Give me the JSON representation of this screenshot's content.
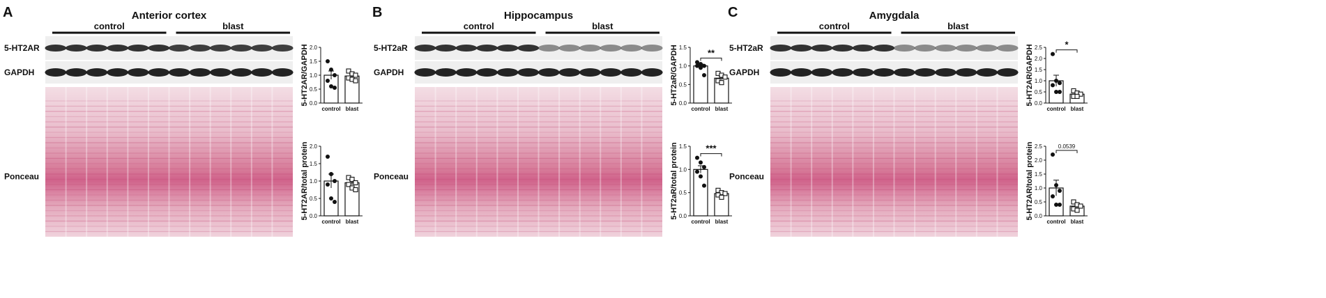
{
  "panels": [
    {
      "letter": "A",
      "title": "Anterior cortex",
      "groups": [
        "control",
        "blast"
      ],
      "blots": [
        "5-HT2AR",
        "GAPDH",
        "Ponceau"
      ]
    },
    {
      "letter": "B",
      "title": "Hippocampus",
      "groups": [
        "control",
        "blast"
      ],
      "blots": [
        "5-HT2aR",
        "GAPDH",
        "Ponceau"
      ]
    },
    {
      "letter": "C",
      "title": "Amygdala",
      "groups": [
        "control",
        "blast"
      ],
      "blots": [
        "5-HT2aR",
        "GAPDH",
        "Ponceau"
      ]
    }
  ],
  "chart_data": [
    {
      "type": "bar",
      "ylabel": "5-HT2AR/GAPDH",
      "categories": [
        "control",
        "blast"
      ],
      "values": [
        1.0,
        0.97
      ],
      "errors": [
        0.15,
        0.07
      ],
      "points": [
        [
          1.5,
          1.2,
          1.0,
          0.8,
          0.6,
          0.55
        ],
        [
          1.15,
          1.05,
          1.0,
          0.9,
          0.85,
          0.8
        ]
      ],
      "ylim": [
        0,
        2.0
      ],
      "yticks": [
        {
          "value": 0,
          "label": "0.0"
        },
        {
          "value": 0.5,
          "label": "0.5"
        },
        {
          "value": 1.0,
          "label": "1.0"
        },
        {
          "value": 1.5,
          "label": "1.5"
        },
        {
          "value": 2.0,
          "label": "2.0"
        }
      ]
    },
    {
      "type": "bar",
      "ylabel": "5-HT2AR/total protein",
      "categories": [
        "control",
        "blast"
      ],
      "values": [
        1.0,
        0.95
      ],
      "errors": [
        0.2,
        0.07
      ],
      "points": [
        [
          1.7,
          1.2,
          1.0,
          0.9,
          0.5,
          0.4
        ],
        [
          1.1,
          1.05,
          0.95,
          0.9,
          0.8,
          0.75
        ]
      ],
      "ylim": [
        0,
        2.0
      ],
      "yticks": [
        {
          "value": 0,
          "label": "0.0"
        },
        {
          "value": 0.5,
          "label": "0.5"
        },
        {
          "value": 1.0,
          "label": "1.0"
        },
        {
          "value": 1.5,
          "label": "1.5"
        },
        {
          "value": 2.0,
          "label": "2.0"
        }
      ]
    },
    {
      "type": "bar",
      "ylabel": "5-HT2aR/GAPDH",
      "categories": [
        "control",
        "blast"
      ],
      "values": [
        1.0,
        0.67
      ],
      "errors": [
        0.05,
        0.05
      ],
      "annotation": "**",
      "points": [
        [
          1.1,
          1.05,
          1.0,
          1.0,
          0.95,
          0.75
        ],
        [
          0.8,
          0.75,
          0.7,
          0.6,
          0.55
        ]
      ],
      "ylim": [
        0,
        1.5
      ],
      "yticks": [
        {
          "value": 0,
          "label": "0.0"
        },
        {
          "value": 0.5,
          "label": "0.5"
        },
        {
          "value": 1.0,
          "label": "1.0"
        },
        {
          "value": 1.5,
          "label": "1.5"
        }
      ]
    },
    {
      "type": "bar",
      "ylabel": "5-HT2aR/total protein",
      "categories": [
        "control",
        "blast"
      ],
      "values": [
        1.0,
        0.48
      ],
      "errors": [
        0.08,
        0.04
      ],
      "annotation": "***",
      "points": [
        [
          1.25,
          1.15,
          1.05,
          0.95,
          0.85,
          0.65
        ],
        [
          0.55,
          0.5,
          0.48,
          0.45,
          0.4
        ]
      ],
      "ylim": [
        0,
        1.5
      ],
      "yticks": [
        {
          "value": 0,
          "label": "0.0"
        },
        {
          "value": 0.5,
          "label": "0.5"
        },
        {
          "value": 1.0,
          "label": "1.0"
        },
        {
          "value": 1.5,
          "label": "1.5"
        }
      ]
    },
    {
      "type": "bar",
      "ylabel": "5-HT2AR/GAPDH",
      "categories": [
        "control",
        "blast"
      ],
      "values": [
        1.0,
        0.4
      ],
      "errors": [
        0.25,
        0.07
      ],
      "annotation": "*",
      "points": [
        [
          2.2,
          1.0,
          0.9,
          0.8,
          0.5,
          0.5
        ],
        [
          0.55,
          0.45,
          0.4,
          0.3,
          0.3
        ]
      ],
      "ylim": [
        0,
        2.5
      ],
      "yticks": [
        {
          "value": 0,
          "label": "0.0"
        },
        {
          "value": 0.5,
          "label": "0.5"
        },
        {
          "value": 1.0,
          "label": "1.0"
        },
        {
          "value": 1.5,
          "label": "1.5"
        },
        {
          "value": 2.0,
          "label": "2.0"
        },
        {
          "value": 2.5,
          "label": "2.5"
        }
      ]
    },
    {
      "type": "bar",
      "ylabel": "5-HT2AR/total protein",
      "categories": [
        "control",
        "blast"
      ],
      "values": [
        1.0,
        0.35
      ],
      "errors": [
        0.28,
        0.08
      ],
      "annotation": "0.0539",
      "points": [
        [
          2.2,
          1.1,
          0.9,
          0.7,
          0.4,
          0.4
        ],
        [
          0.5,
          0.4,
          0.35,
          0.25,
          0.2
        ]
      ],
      "ylim": [
        0,
        2.5
      ],
      "yticks": [
        {
          "value": 0,
          "label": "0.0"
        },
        {
          "value": 0.5,
          "label": "0.5"
        },
        {
          "value": 1.0,
          "label": "1.0"
        },
        {
          "value": 1.5,
          "label": "1.5"
        },
        {
          "value": 2.0,
          "label": "2.0"
        },
        {
          "value": 2.5,
          "label": "2.5"
        }
      ]
    }
  ]
}
